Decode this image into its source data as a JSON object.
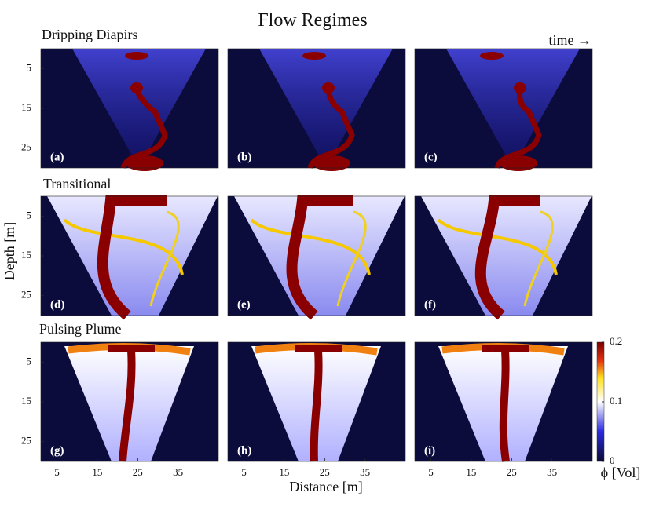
{
  "title": "Flow Regimes",
  "time_label": "time →",
  "rows": [
    {
      "label": "Dripping Diapirs",
      "panels": [
        "(a)",
        "(b)",
        "(c)"
      ]
    },
    {
      "label": "Transitional",
      "panels": [
        "(d)",
        "(e)",
        "(f)"
      ]
    },
    {
      "label": "Pulsing Plume",
      "panels": [
        "(g)",
        "(h)",
        "(i)"
      ]
    }
  ],
  "y_axis": {
    "label": "Depth [m]",
    "lim": [
      0,
      30
    ],
    "ticks": [
      5,
      15,
      25
    ]
  },
  "x_axis": {
    "label": "Distance [m]",
    "lim": [
      1,
      45
    ],
    "ticks": [
      5,
      15,
      25,
      35
    ]
  },
  "colorbar": {
    "label": "ϕ [Vol]",
    "lim": [
      0,
      0.2
    ],
    "ticks": [
      0,
      0.1,
      0.2
    ]
  }
}
